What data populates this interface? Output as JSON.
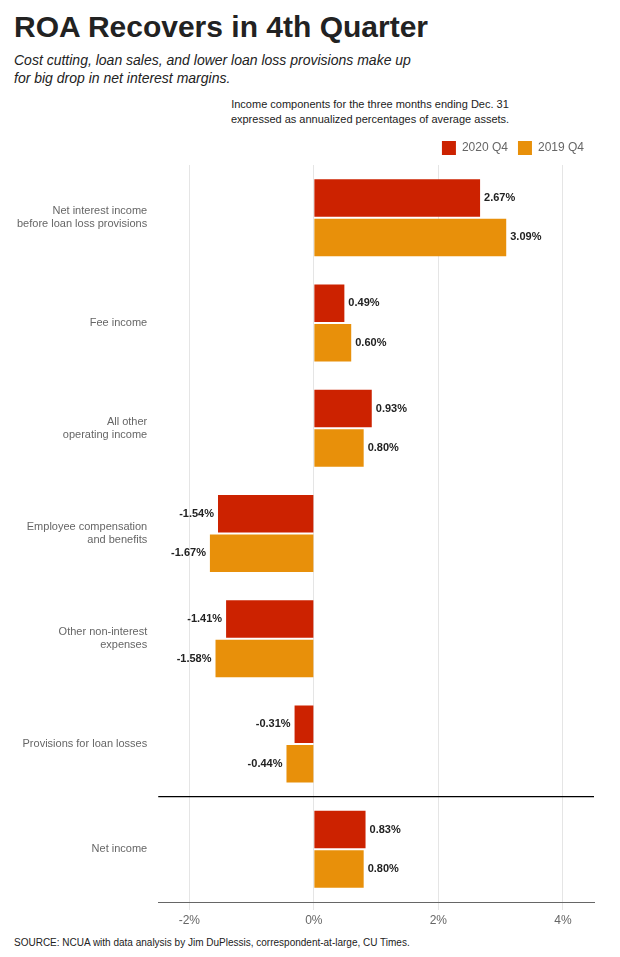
{
  "chart_data": {
    "type": "bar",
    "orientation": "horizontal",
    "title": "ROA Recovers in 4th Quarter",
    "subtitle": "Cost cutting, loan sales, and lower loan loss provisions make up\nfor big drop in net interest margins.",
    "annotations": [
      "Income components for the three months ending Dec. 31\nexpressed as annualized percentages of average assets.",
      "SOURCE: NCUA with data analysis by Jim DuPlessis, correspondent-at-large, CU Times."
    ],
    "categories": [
      "Net interest income\nbefore loan loss provisions",
      "Fee income",
      "All other\noperating income",
      "Employee compensation\nand benefits",
      "Other non-interest\nexpenses",
      "Provisions for loan losses",
      "Net income"
    ],
    "series": [
      {
        "name": "2020 Q4",
        "color": "#cc2200",
        "values": [
          2.67,
          0.49,
          0.93,
          -1.54,
          -1.41,
          -0.31,
          0.83
        ],
        "value_labels": [
          "2.67%",
          "0.49%",
          "0.93%",
          "-1.54%",
          "-1.41%",
          "-0.31%",
          "0.83%"
        ]
      },
      {
        "name": "2019 Q4",
        "color": "#e8900a",
        "values": [
          3.09,
          0.6,
          0.8,
          -1.67,
          -1.58,
          -0.44,
          0.8
        ],
        "value_labels": [
          "3.09%",
          "0.60%",
          "0.80%",
          "-1.67%",
          "-1.58%",
          "-0.44%",
          "0.80%"
        ]
      }
    ],
    "xlim": [
      -2.5,
      4.5
    ],
    "xticks": [
      {
        "value": -2,
        "label": "-2%"
      },
      {
        "value": 0,
        "label": "0%"
      },
      {
        "value": 2,
        "label": "2%"
      },
      {
        "value": 4,
        "label": "4%"
      }
    ],
    "grid": true,
    "legend": "upper right",
    "data_labels": true
  }
}
